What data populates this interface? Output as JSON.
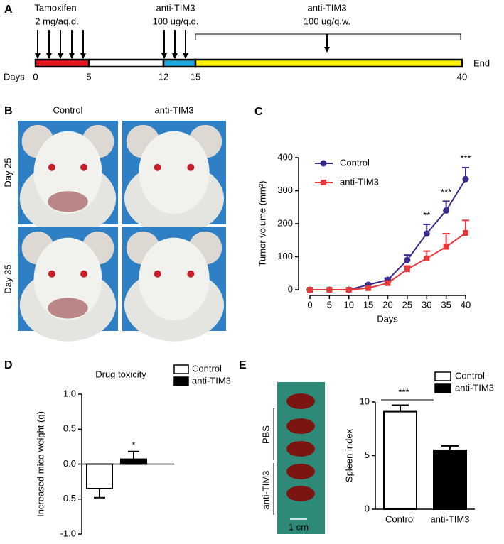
{
  "panels": [
    "A",
    "B",
    "C",
    "D",
    "E"
  ],
  "timeline": {
    "labels": [
      "Tamoxifen",
      "2 mg/aq.d.",
      "anti-TIM3",
      "100 ug/q.d.",
      "anti-TIM3",
      "100 ug/q.w."
    ],
    "axis_label": "Days",
    "end_label": "End",
    "days": [
      0,
      5,
      12,
      15,
      40
    ],
    "segment_colors": [
      "#e8141b",
      "#ffffff",
      "#1ba9e1",
      "#fff200"
    ]
  },
  "photos": {
    "columns": [
      "Control",
      "anti-TIM3"
    ],
    "rows": [
      "Day 25",
      "Day 35"
    ]
  },
  "spleen_photo": {
    "labels": [
      "PBS",
      "anti-TIM3"
    ],
    "scale": "1 cm"
  },
  "chart_data": [
    {
      "type": "line",
      "x": [
        0,
        5,
        10,
        15,
        20,
        25,
        30,
        35,
        40
      ],
      "x_label": "Days",
      "y_label": "Tumor volume (mm³)",
      "xlim": [
        0,
        40
      ],
      "xticks": [
        0,
        5,
        10,
        15,
        20,
        25,
        30,
        35,
        40
      ],
      "ylim": [
        0,
        400
      ],
      "yticks": [
        0,
        100,
        200,
        300,
        400
      ],
      "series": [
        {
          "name": "Control",
          "color": "#3b2a8c",
          "marker": "circle",
          "values": [
            0,
            0,
            0,
            15,
            30,
            90,
            170,
            240,
            335
          ],
          "errors": [
            0,
            0,
            0,
            3,
            5,
            15,
            28,
            28,
            35
          ]
        },
        {
          "name": "anti-TIM3",
          "color": "#e8393b",
          "marker": "square",
          "values": [
            0,
            0,
            0,
            5,
            20,
            62,
            95,
            130,
            172
          ],
          "errors": [
            0,
            0,
            0,
            2,
            5,
            10,
            22,
            40,
            38
          ]
        }
      ],
      "annotations": [
        {
          "x": 30,
          "text": "**"
        },
        {
          "x": 35,
          "text": "***"
        },
        {
          "x": 40,
          "text": "***"
        }
      ]
    },
    {
      "type": "bar",
      "title": "Drug toxicity",
      "y_label": "Increased mice weight (g)",
      "ylim": [
        -1,
        1
      ],
      "yticks": [
        {
          "value": -1,
          "label": "-1.0"
        },
        {
          "value": -0.5,
          "label": "-0.5"
        },
        {
          "value": 0,
          "label": "0.0"
        },
        {
          "value": 0.5,
          "label": "0.5"
        },
        {
          "value": 1,
          "label": "1.0"
        }
      ],
      "series": [
        {
          "name": "Control",
          "color": "#ffffff",
          "values": [
            -0.35
          ],
          "errors": [
            0.13
          ]
        },
        {
          "name": "anti-TIM3",
          "color": "#000000",
          "values": [
            0.07
          ],
          "errors": [
            0.11
          ]
        }
      ],
      "annotation": "*"
    },
    {
      "type": "bar",
      "categories": [
        "Control",
        "anti-TIM3"
      ],
      "y_label": "Spleen index",
      "values": [
        9.1,
        5.5
      ],
      "errors": [
        0.6,
        0.4
      ],
      "colors": [
        "#ffffff",
        "#000000"
      ],
      "legend": [
        "Control",
        "anti-TIM3"
      ],
      "ylim": [
        0,
        10
      ],
      "yticks": [
        0,
        5,
        10
      ],
      "annotation": "***"
    }
  ]
}
